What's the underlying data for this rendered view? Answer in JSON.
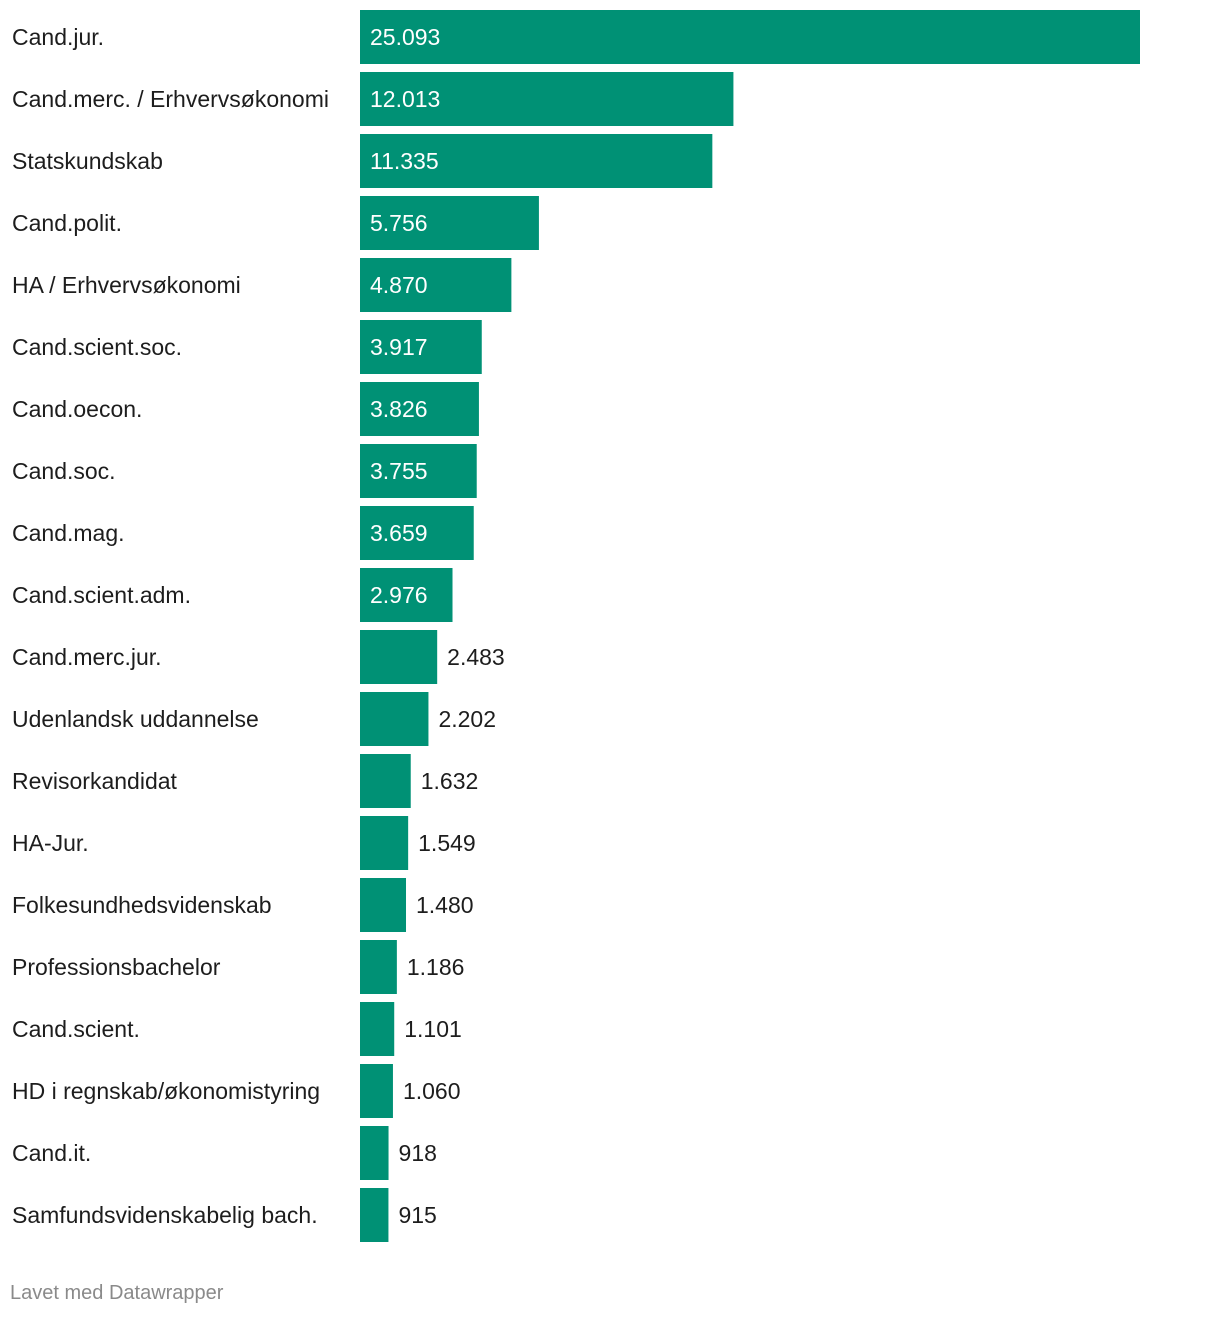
{
  "colors": {
    "bar": "#009175",
    "label_inside": "#ffffff",
    "label_outside": "#1d1d1d",
    "footer": "#8a8a8a"
  },
  "chart_data": {
    "type": "bar",
    "orientation": "horizontal",
    "categories": [
      "Cand.jur.",
      "Cand.merc. / Erhvervsøkonomi",
      "Statskundskab",
      "Cand.polit.",
      "HA / Erhvervsøkonomi",
      "Cand.scient.soc.",
      "Cand.oecon.",
      "Cand.soc.",
      "Cand.mag.",
      "Cand.scient.adm.",
      "Cand.merc.jur.",
      "Udenlandsk uddannelse",
      "Revisorkandidat",
      "HA-Jur.",
      "Folkesundhedsvidenskab",
      "Professionsbachelor",
      "Cand.scient.",
      "HD i regnskab/økonomistyring",
      "Cand.it.",
      "Samfundsvidenskabelig bach."
    ],
    "values": [
      25093,
      12013,
      11335,
      5756,
      4870,
      3917,
      3826,
      3755,
      3659,
      2976,
      2483,
      2202,
      1632,
      1549,
      1480,
      1186,
      1101,
      1060,
      918,
      915
    ],
    "value_labels": [
      "25.093",
      "12.013",
      "11.335",
      "5.756",
      "4.870",
      "3.917",
      "3.826",
      "3.755",
      "3.659",
      "2.976",
      "2.483",
      "2.202",
      "1.632",
      "1.549",
      "1.480",
      "1.186",
      "1.101",
      "1.060",
      "918",
      "915"
    ],
    "xlim": [
      0,
      25093
    ],
    "grid": false,
    "legend": "none"
  },
  "footer": {
    "credit": "Lavet med Datawrapper"
  }
}
